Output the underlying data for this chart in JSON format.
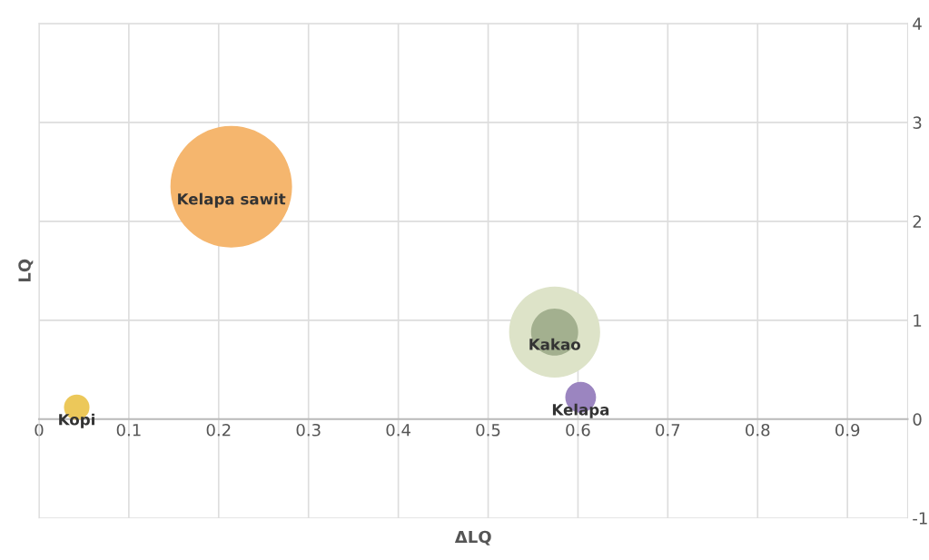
{
  "chart_data": {
    "type": "bubble",
    "xlabel": "ΔLQ",
    "ylabel": "LQ",
    "xlim": [
      0,
      0.967
    ],
    "xticks": [
      0,
      0.1,
      0.2,
      0.3,
      0.4,
      0.5,
      0.6,
      0.7,
      0.8,
      0.9
    ],
    "ylim": [
      -1,
      4
    ],
    "yticks": [
      {
        "value": -1,
        "label": "-1"
      },
      0,
      1,
      2,
      3,
      4
    ],
    "grid": true,
    "legend": false,
    "series": [
      {
        "name": "Kelapa sawit",
        "color": "#f5b66e",
        "x": [
          0.214
        ],
        "values": [
          2.35
        ],
        "sizes": [
          1
        ]
      },
      {
        "name": "Kakao",
        "color": "#dde3c8",
        "x": [
          0.574
        ],
        "values": [
          0.88
        ],
        "sizes": [
          0.56
        ]
      },
      {
        "color": "#a3b08f",
        "x": [
          0.574
        ],
        "values": [
          0.88
        ],
        "sizes": [
          0.15
        ]
      },
      {
        "name": "Kelapa",
        "color": "#9b85c0",
        "x": [
          0.603
        ],
        "values": [
          0.22
        ],
        "sizes": [
          0.064
        ]
      },
      {
        "name": "Kopi",
        "color": "#ecc85a",
        "x": [
          0.042
        ],
        "values": [
          0.12
        ],
        "sizes": [
          0.044
        ]
      }
    ]
  }
}
